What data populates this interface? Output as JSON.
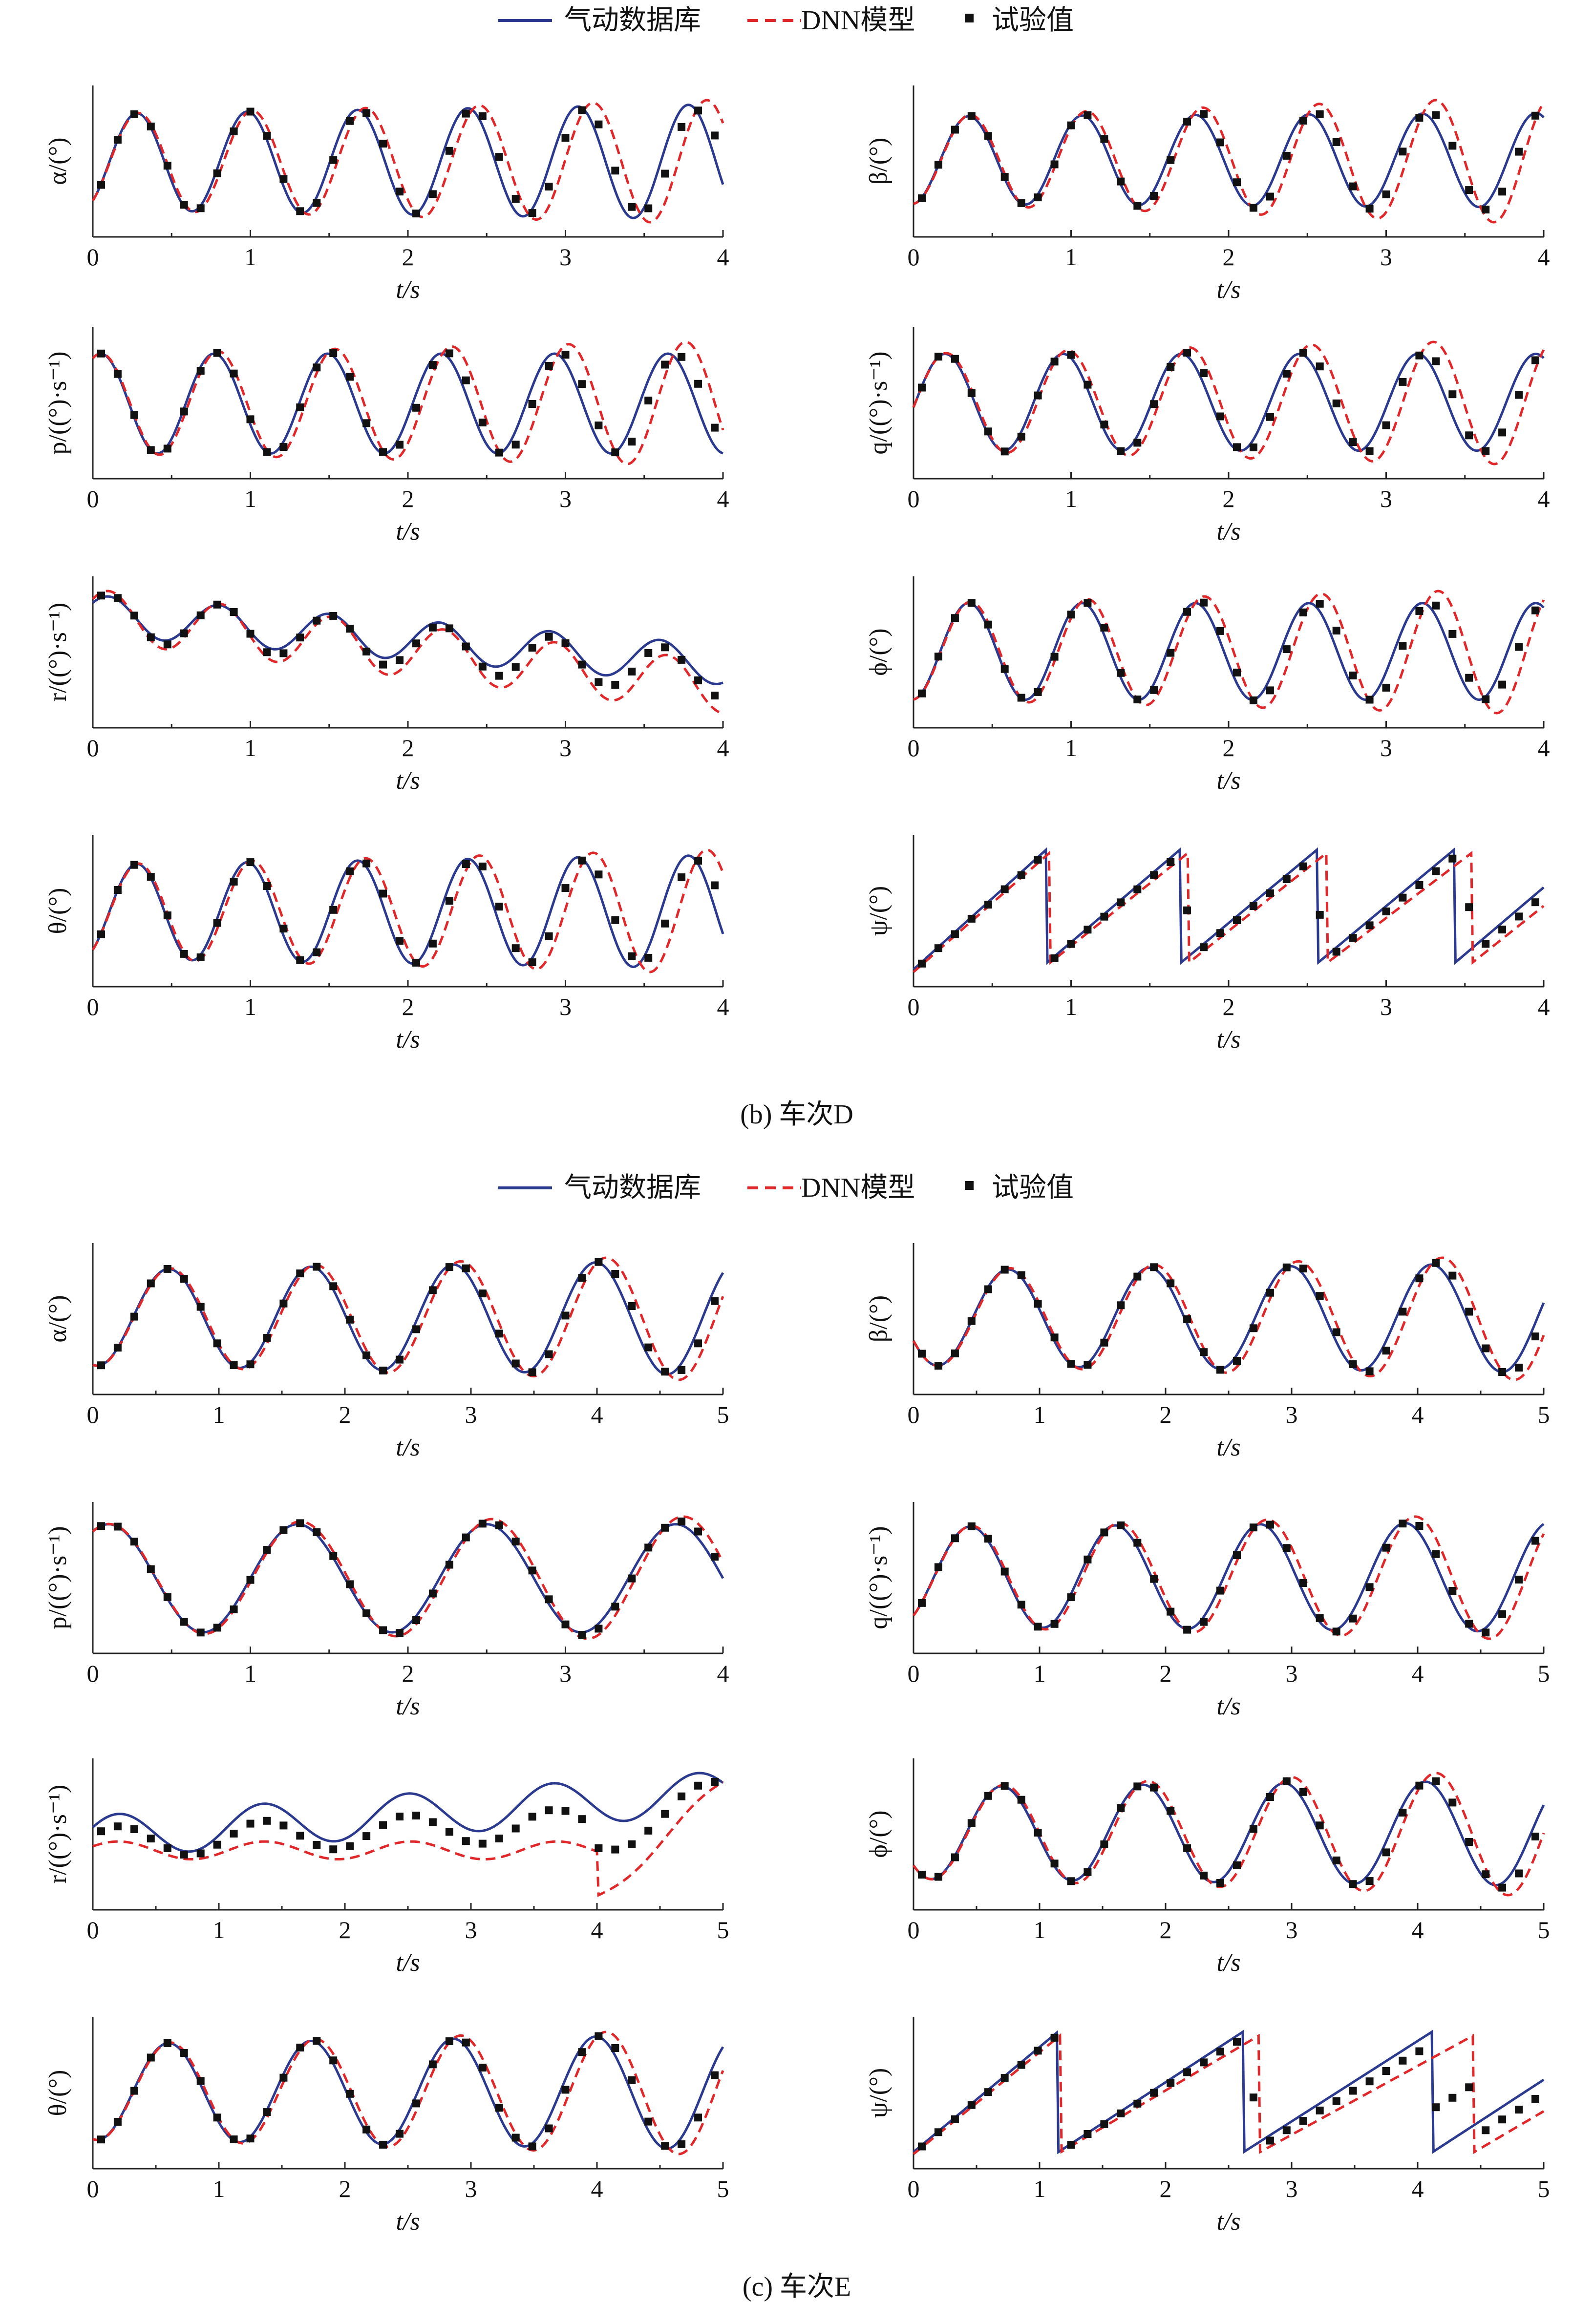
{
  "legend": {
    "database": "气动数据库",
    "dnn": "DNN模型",
    "test": "试验值",
    "colors": {
      "database": "#2b3a8f",
      "dnn": "#e0282b",
      "test": "#111111"
    }
  },
  "sections": [
    {
      "caption": "(b) 车次D",
      "panels": [
        {
          "ylabel": "α/(°)",
          "xlabel": "t/s",
          "xmax": 4,
          "xticks": [
            "0",
            "1",
            "2",
            "3",
            "4"
          ],
          "chart_data": {
            "type": "line",
            "kind": "osc",
            "xlim": [
              0,
              4
            ],
            "period": 0.7,
            "phase": 0.28,
            "amp": 0.82,
            "ampGrow": 0.05,
            "drift": 0,
            "lagGrow": 0.12,
            "dnnAmp": 1.08
          }
        },
        {
          "ylabel": "β/(°)",
          "xlabel": "t/s",
          "xmax": 4,
          "xticks": [
            "0",
            "1",
            "2",
            "3",
            "4"
          ],
          "chart_data": {
            "type": "line",
            "kind": "osc",
            "xlim": [
              0,
              4
            ],
            "period": 0.72,
            "phase": 0.35,
            "amp": 0.55,
            "ampGrow": 0.02,
            "drift": 0,
            "lagGrow": 0.1,
            "dnnAmp": 1.35
          }
        },
        {
          "ylabel": "p/((°)·s⁻¹)",
          "xlabel": "t/s",
          "xmax": 4,
          "xticks": [
            "0",
            "1",
            "2",
            "3",
            "4"
          ],
          "chart_data": {
            "type": "line",
            "kind": "osc",
            "xlim": [
              0,
              4
            ],
            "period": 0.72,
            "phase": 0.05,
            "amp": 0.55,
            "ampGrow": 0,
            "drift": 0,
            "lagGrow": 0.12,
            "dnnAmp": 1.25
          }
        },
        {
          "ylabel": "q/((°)·s⁻¹)",
          "xlabel": "t/s",
          "xmax": 4,
          "xticks": [
            "0",
            "1",
            "2",
            "3",
            "4"
          ],
          "chart_data": {
            "type": "line",
            "kind": "osc",
            "xlim": [
              0,
              4
            ],
            "period": 0.75,
            "phase": 0.2,
            "amp": 0.55,
            "ampGrow": 0,
            "drift": 0,
            "lagGrow": 0.12,
            "dnnAmp": 1.3
          }
        },
        {
          "ylabel": "r/((°)·s⁻¹)",
          "xlabel": "t/s",
          "xmax": 4,
          "xticks": [
            "0",
            "1",
            "2",
            "3",
            "4"
          ],
          "chart_data": {
            "type": "line",
            "kind": "drift",
            "xlim": [
              0,
              4
            ],
            "period": 0.7,
            "phase": 0.1,
            "amp": 0.22,
            "ampGrow": 0,
            "drift": -0.55,
            "lagGrow": 0.05,
            "dnnAmp": 1.6
          }
        },
        {
          "ylabel": "ϕ/(°)",
          "xlabel": "t/s",
          "xmax": 4,
          "xticks": [
            "0",
            "1",
            "2",
            "3",
            "4"
          ],
          "chart_data": {
            "type": "line",
            "kind": "osc",
            "xlim": [
              0,
              4
            ],
            "period": 0.72,
            "phase": 0.35,
            "amp": 0.65,
            "ampGrow": 0,
            "drift": 0,
            "lagGrow": 0.12,
            "dnnAmp": 1.3
          }
        },
        {
          "ylabel": "θ/(°)",
          "xlabel": "t/s",
          "xmax": 4,
          "xticks": [
            "0",
            "1",
            "2",
            "3",
            "4"
          ],
          "chart_data": {
            "type": "line",
            "kind": "osc",
            "xlim": [
              0,
              4
            ],
            "period": 0.7,
            "phase": 0.28,
            "amp": 0.8,
            "ampGrow": 0.05,
            "drift": 0,
            "lagGrow": 0.12,
            "dnnAmp": 1.1
          }
        },
        {
          "ylabel": "ψ/(°)",
          "xlabel": "t/s",
          "xmax": 4,
          "xticks": [
            "0",
            "1",
            "2",
            "3",
            "4"
          ],
          "chart_data": {
            "type": "line",
            "kind": "saw",
            "xlim": [
              0,
              4
            ],
            "wraps": [
              0.85,
              1.7,
              2.57,
              3.44
            ],
            "dnnWraps": [
              0.87,
              1.75,
              2.63,
              3.55
            ],
            "start": 0.05
          }
        }
      ]
    },
    {
      "caption": "(c) 车次E",
      "panels": [
        {
          "ylabel": "α/(°)",
          "xlabel": "t/s",
          "xmax": 5,
          "xticks": [
            "0",
            "1",
            "2",
            "3",
            "4",
            "5"
          ],
          "chart_data": {
            "type": "line",
            "kind": "osc",
            "xlim": [
              0,
              5
            ],
            "period": 1.13,
            "phase": 0.6,
            "amp": 0.75,
            "ampGrow": 0.04,
            "drift": 0,
            "lagGrow": 0.1,
            "dnnAmp": 1.1
          }
        },
        {
          "ylabel": "β/(°)",
          "xlabel": "t/s",
          "xmax": 5,
          "xticks": [
            "0",
            "1",
            "2",
            "3",
            "4",
            "5"
          ],
          "chart_data": {
            "type": "line",
            "kind": "osc",
            "xlim": [
              0,
              5
            ],
            "period": 1.12,
            "phase": 0.75,
            "amp": 0.5,
            "ampGrow": 0.03,
            "drift": 0,
            "lagGrow": 0.1,
            "dnnAmp": 1.15
          }
        },
        {
          "ylabel": "p/((°)·s⁻¹)",
          "xlabel": "t/s",
          "xmax": 4,
          "xticks": [
            "0",
            "1",
            "2",
            "3",
            "4"
          ],
          "chart_data": {
            "type": "line",
            "kind": "osc",
            "xlim": [
              0,
              4
            ],
            "period": 1.2,
            "phase": 0.1,
            "amp": 0.35,
            "ampGrow": 0,
            "drift": 0,
            "lagGrow": 0.05,
            "dnnAmp": 1.15
          }
        },
        {
          "ylabel": "q/((°)·s⁻¹)",
          "xlabel": "t/s",
          "xmax": 5,
          "xticks": [
            "0",
            "1",
            "2",
            "3",
            "4",
            "5"
          ],
          "chart_data": {
            "type": "line",
            "kind": "osc",
            "xlim": [
              0,
              5
            ],
            "period": 1.15,
            "phase": 0.45,
            "amp": 0.5,
            "ampGrow": 0.02,
            "drift": 0,
            "lagGrow": 0.1,
            "dnnAmp": 1.15
          }
        },
        {
          "ylabel": "r/((°)·s⁻¹)",
          "xlabel": "t/s",
          "xmax": 5,
          "xticks": [
            "0",
            "1",
            "2",
            "3",
            "4",
            "5"
          ],
          "chart_data": {
            "type": "line",
            "kind": "driftUp",
            "xlim": [
              0,
              5
            ],
            "period": 1.15,
            "phase": 0.2,
            "amp": 0.2,
            "ampGrow": 0.05,
            "drift": 0.5,
            "lagGrow": 0.05,
            "dnnAmp": 1.0
          }
        },
        {
          "ylabel": "ϕ/(°)",
          "xlabel": "t/s",
          "xmax": 5,
          "xticks": [
            "0",
            "1",
            "2",
            "3",
            "4",
            "5"
          ],
          "chart_data": {
            "type": "line",
            "kind": "osc",
            "xlim": [
              0,
              5
            ],
            "period": 1.12,
            "phase": 0.7,
            "amp": 0.55,
            "ampGrow": 0.03,
            "drift": 0,
            "lagGrow": 0.1,
            "dnnAmp": 1.2
          }
        },
        {
          "ylabel": "θ/(°)",
          "xlabel": "t/s",
          "xmax": 5,
          "xticks": [
            "0",
            "1",
            "2",
            "3",
            "4",
            "5"
          ],
          "chart_data": {
            "type": "line",
            "kind": "osc",
            "xlim": [
              0,
              5
            ],
            "period": 1.13,
            "phase": 0.6,
            "amp": 0.7,
            "ampGrow": 0.04,
            "drift": 0,
            "lagGrow": 0.1,
            "dnnAmp": 1.1
          }
        },
        {
          "ylabel": "ψ/(°)",
          "xlabel": "t/s",
          "xmax": 5,
          "xticks": [
            "0",
            "1",
            "2",
            "3",
            "4",
            "5"
          ],
          "chart_data": {
            "type": "line",
            "kind": "saw",
            "xlim": [
              0,
              5
            ],
            "wraps": [
              1.15,
              2.62,
              4.12
            ],
            "dnnWraps": [
              1.17,
              2.75,
              4.45
            ],
            "start": 0.0
          }
        }
      ]
    }
  ]
}
